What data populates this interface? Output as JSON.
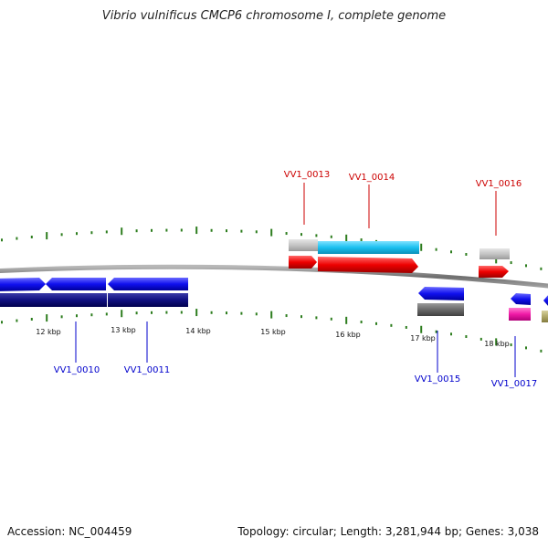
{
  "title": "Vibrio vulnificus CMCP6 chromosome I, complete genome",
  "footer": {
    "accession": "Accession: NC_004459",
    "summary": "Topology: circular; Length: 3,281,944 bp; Genes: 3,038"
  },
  "colors": {
    "label_top": "#cc0000",
    "label_bottom": "#0000cc",
    "tick": "#2d7d1e",
    "backbone": "#888888"
  },
  "axis_labels": [
    "12 kbp",
    "13 kbp",
    "14 kbp",
    "15 kbp",
    "16 kbp",
    "17 kbp",
    "18 kbp"
  ],
  "gene_labels_top": [
    "VV1_0013",
    "VV1_0014",
    "VV1_0016"
  ],
  "gene_labels_bottom": [
    "VV1_0010",
    "VV1_0011",
    "VV1_0015",
    "VV1_0017"
  ]
}
